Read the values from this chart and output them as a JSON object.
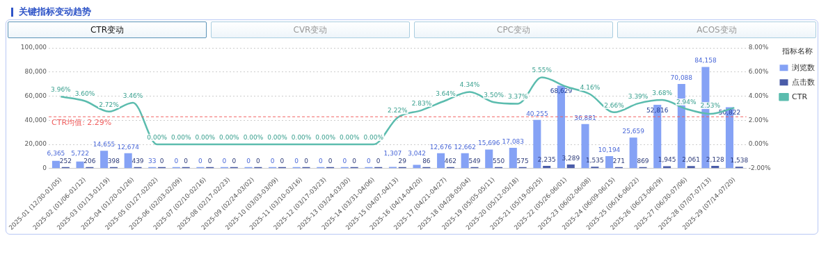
{
  "chart_data": {
    "type": "bar",
    "title": "关键指标变动趋势",
    "annotations": [
      "CTR变动",
      "CVR变动",
      "CPC变动",
      "ACOS变动"
    ],
    "legend_title": "指标名称",
    "legend": "top right",
    "grid": "y",
    "marker": "none",
    "categories": [
      "2025-01 (12/30-01/05)",
      "2025-02 (01/06-01/12)",
      "2025-03 (01/13-01/19)",
      "2025-04 (01/20-01/26)",
      "2025-05 (01/27-02/02)",
      "2025-06 (02/03-02/09)",
      "2025-07 (02/10-02/16)",
      "2025-08 (02/17-02/23)",
      "2025-09 (02/24-03/02)",
      "2025-10 (03/03-03/09)",
      "2025-11 (03/10-03/16)",
      "2025-12 (03/17-03/23)",
      "2025-13 (03/24-03/30)",
      "2025-14 (03/31-04/06)",
      "2025-15 (04/07-04/13)",
      "2025-16 (04/14-04/20)",
      "2025-17 (04/21-04/27)",
      "2025-18 (04/28-05/04)",
      "2025-19 (05/05-05/11)",
      "2025-20 (05/12-05/18)",
      "2025-21 (05/19-05/25)",
      "2025-22 (05/26-06/01)",
      "2025-23 (06/02-06/08)",
      "2025-24 (06/09-06/15)",
      "2025-25 (06/16-06/22)",
      "2025-26 (06/23-06/29)",
      "2025-27 (06/30-07/06)",
      "2025-28 (07/07-07/13)",
      "2025-29 (07/14-07/20)"
    ],
    "ylim": [
      0,
      100000
    ],
    "yticks": [
      {
        "value": 0,
        "label": "0"
      },
      {
        "value": 20000,
        "label": "20,000"
      },
      {
        "value": 40000,
        "label": "40,000"
      },
      {
        "value": 60000,
        "label": "60,000"
      },
      {
        "value": 80000,
        "label": "80,000"
      },
      {
        "value": 100000,
        "label": "100,000"
      }
    ],
    "y2lim": [
      -2,
      8
    ],
    "y2ticks": [
      {
        "value": -2,
        "label": "-2.00%"
      },
      {
        "value": 0,
        "label": "0.00%"
      },
      {
        "value": 2,
        "label": "2.00%"
      },
      {
        "value": 4,
        "label": "4.00%"
      },
      {
        "value": 6,
        "label": "6.00%"
      },
      {
        "value": 8,
        "label": "8.00%"
      }
    ],
    "series": [
      {
        "name": "浏览数",
        "type": "bar",
        "color": "#85a2f5",
        "values": [
          6365,
          5722,
          14655,
          12674,
          33,
          0,
          0,
          0,
          0,
          0,
          0,
          0,
          0,
          0,
          1307,
          3042,
          12676,
          12662,
          15696,
          17083,
          40255,
          68629,
          36881,
          10194,
          25659,
          52816,
          70088,
          84158,
          50822
        ],
        "value_labels": [
          "6,365",
          "5,722",
          "14,655",
          "12,674",
          "33",
          "0",
          "0",
          "0",
          "0",
          "0",
          "0",
          "0",
          "0",
          "0",
          "1,307",
          "3,042",
          "12,676",
          "12,662",
          "15,696",
          "17,083",
          "40,255",
          "68,629",
          "36,881",
          "10,194",
          "25,659",
          "52,816",
          "70,088",
          "84,158",
          "50,822"
        ]
      },
      {
        "name": "点击数",
        "type": "bar",
        "color": "#4a5ca8",
        "values": [
          252,
          206,
          398,
          439,
          0,
          0,
          0,
          0,
          0,
          0,
          0,
          0,
          0,
          0,
          29,
          86,
          462,
          549,
          550,
          575,
          2235,
          3289,
          1535,
          271,
          869,
          1945,
          2061,
          2128,
          1538
        ],
        "value_labels": [
          "252",
          "206",
          "398",
          "439",
          "0",
          "0",
          "0",
          "0",
          "0",
          "0",
          "0",
          "0",
          "0",
          "0",
          "29",
          "86",
          "462",
          "549",
          "550",
          "575",
          "2,235",
          "3,289",
          "1,535",
          "271",
          "869",
          "1,945",
          "2,061",
          "2,128",
          "1,538"
        ]
      },
      {
        "name": "CTR",
        "type": "line",
        "axis": "y2",
        "color": "#5bbcae",
        "values": [
          3.96,
          3.6,
          2.72,
          3.46,
          0,
          0,
          0,
          0,
          0,
          0,
          0,
          0,
          0,
          0,
          2.22,
          2.83,
          3.64,
          4.34,
          3.5,
          3.37,
          5.55,
          4.79,
          4.16,
          2.66,
          3.39,
          3.68,
          2.94,
          2.53,
          3.03
        ],
        "value_labels": [
          "3.96%",
          "3.60%",
          "2.72%",
          "3.46%",
          "0.00%",
          "0.00%",
          "0.00%",
          "0.00%",
          "0.00%",
          "0.00%",
          "0.00%",
          "0.00%",
          "0.00%",
          "0.00%",
          "2.22%",
          "2.83%",
          "3.64%",
          "4.34%",
          "3.50%",
          "3.37%",
          "5.55%",
          null,
          "4.16%",
          "2.66%",
          "3.39%",
          "3.68%",
          "2.94%",
          "2.53%",
          null
        ]
      }
    ],
    "ref_lines": [
      {
        "axis": "y2",
        "value": 2.29,
        "label": "CTR均值: 2.29%",
        "color": "#f06060",
        "line_style": "dashed"
      }
    ]
  }
}
